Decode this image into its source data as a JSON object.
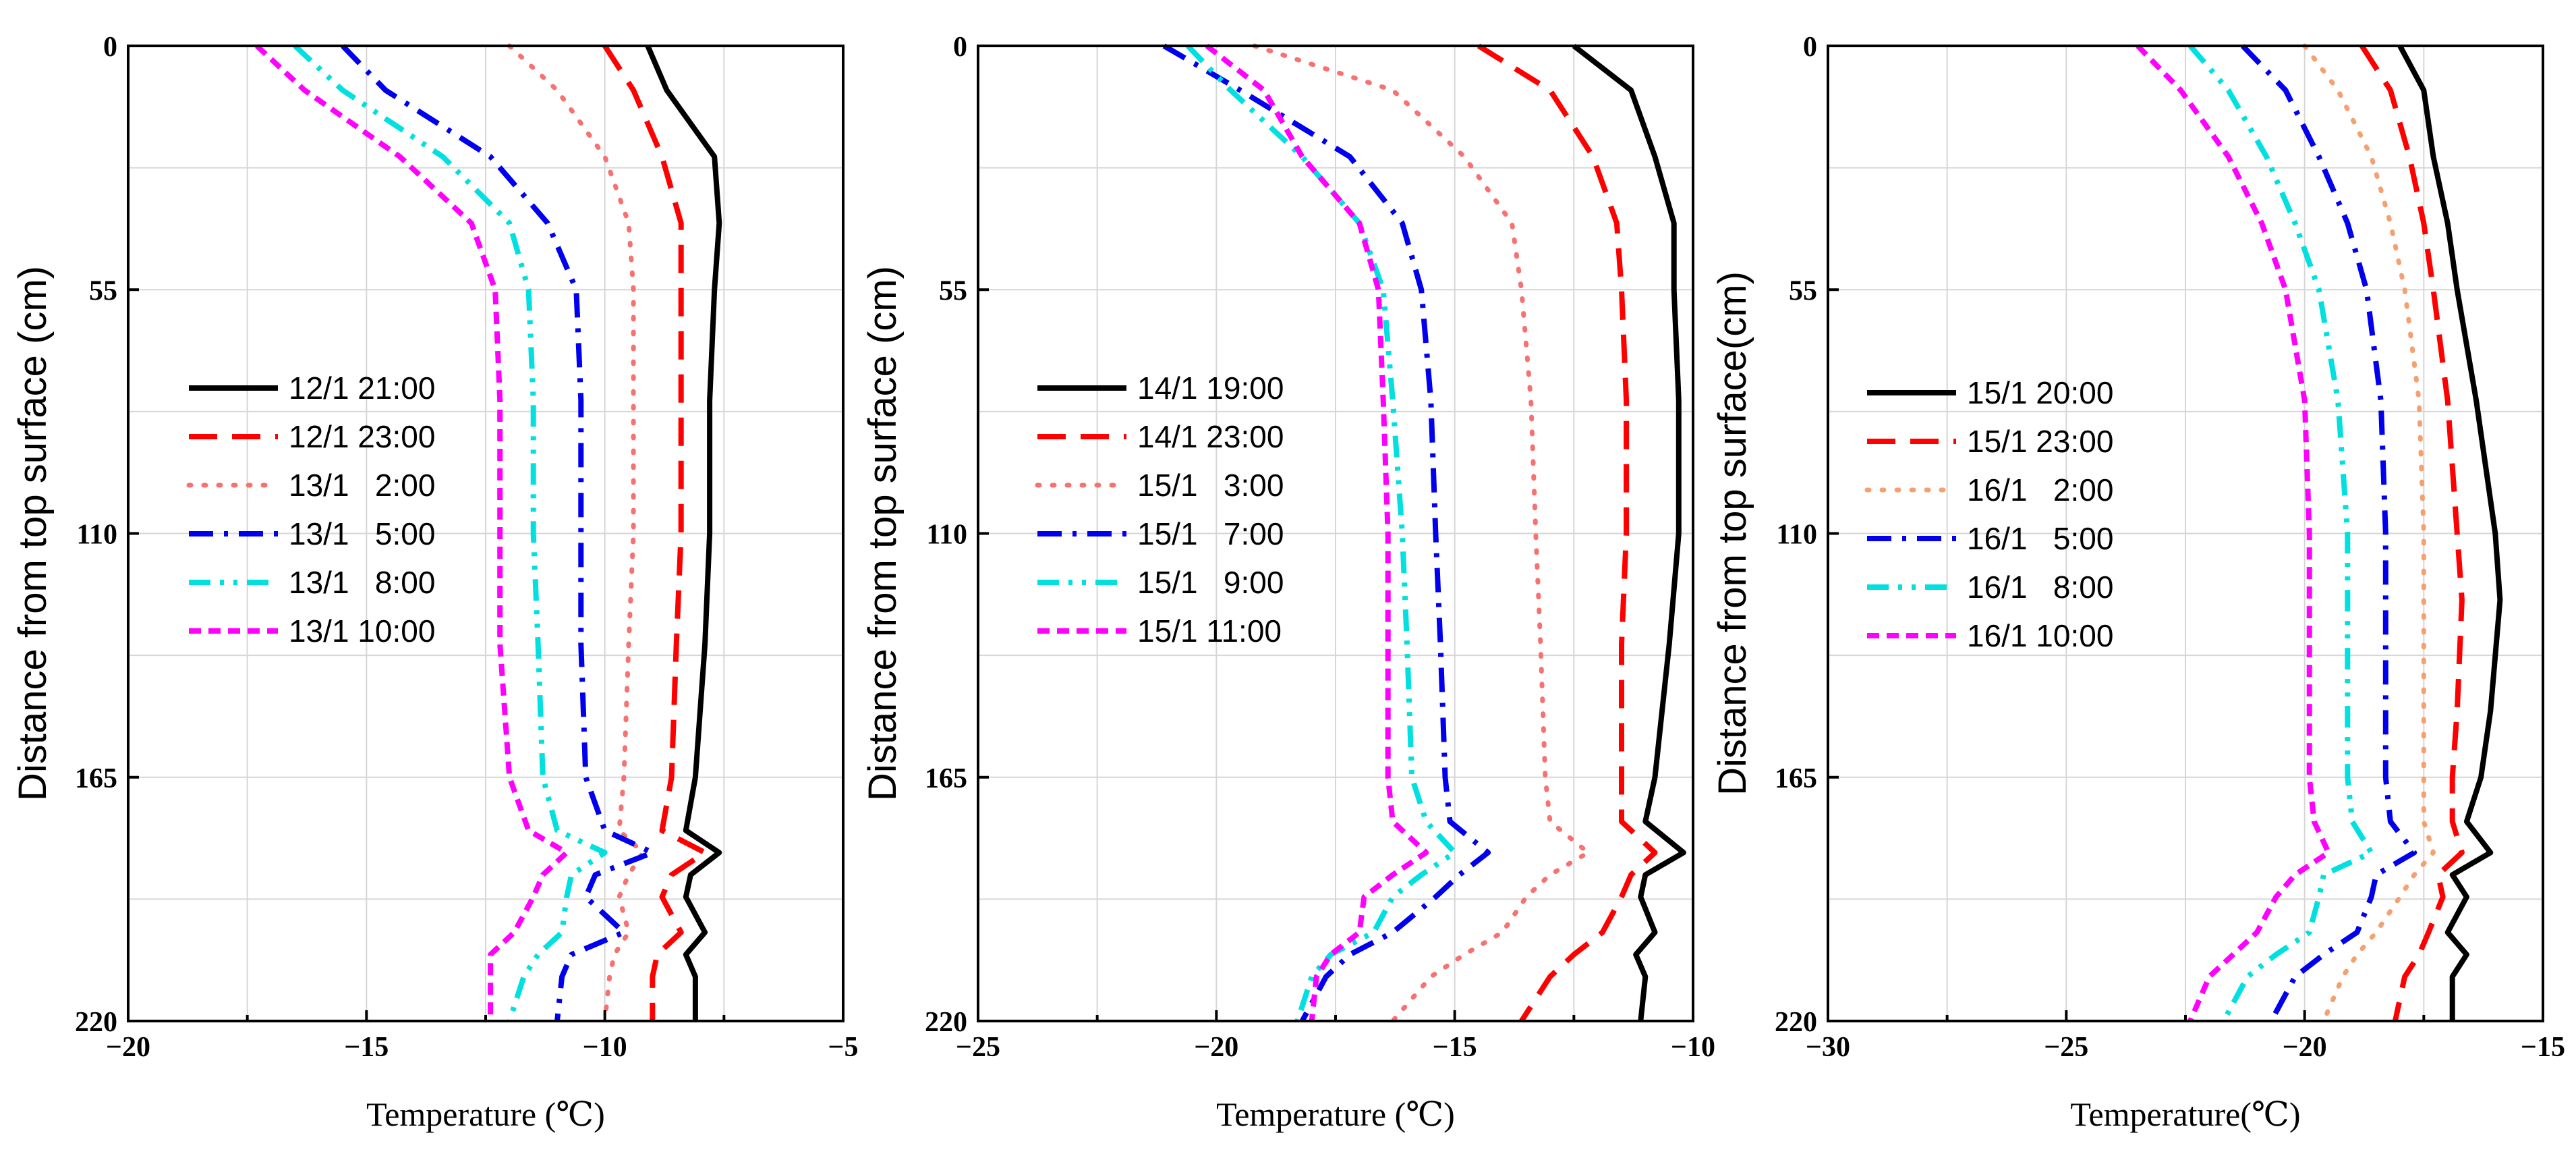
{
  "chart_data": [
    {
      "type": "line",
      "xlabel": "Temperature (℃)",
      "ylabel": "Distance from top surface (cm)",
      "xlim": [
        -20,
        -5
      ],
      "xticks": [
        -20,
        -15,
        -10,
        -5
      ],
      "x_minor_step": 2.5,
      "ylim": [
        0,
        220
      ],
      "yticks": [
        0,
        55,
        110,
        165,
        220
      ],
      "y_minor_step": 27.5,
      "y": [
        0,
        10,
        25,
        40,
        55,
        80,
        110,
        135,
        165,
        177,
        182,
        187,
        192,
        200,
        205,
        210,
        220
      ],
      "series": [
        {
          "name": "12/1 21:00",
          "color": "#000000",
          "dash": "solid",
          "x": [
            -9.1,
            -8.7,
            -7.7,
            -7.6,
            -7.7,
            -7.8,
            -7.8,
            -7.9,
            -8.1,
            -8.3,
            -7.6,
            -8.2,
            -8.3,
            -7.9,
            -8.3,
            -8.1,
            -8.1
          ]
        },
        {
          "name": "12/1 23:00",
          "color": "#ff0000",
          "dash": "dash",
          "x": [
            -10.0,
            -9.4,
            -8.8,
            -8.4,
            -8.4,
            -8.4,
            -8.4,
            -8.5,
            -8.6,
            -8.8,
            -7.9,
            -8.6,
            -8.8,
            -8.4,
            -8.9,
            -9.0,
            -9.0
          ]
        },
        {
          "name": "13/1   2:00",
          "color": "#f87171",
          "dash": "dot",
          "x": [
            -12.0,
            -11.0,
            -10.0,
            -9.5,
            -9.4,
            -9.4,
            -9.4,
            -9.5,
            -9.6,
            -9.7,
            -9.2,
            -9.5,
            -9.7,
            -9.5,
            -9.8,
            -9.9,
            -10.0
          ]
        },
        {
          "name": "13/1   5:00",
          "color": "#0000ee",
          "dash": "dashdot",
          "x": [
            -15.5,
            -14.6,
            -12.4,
            -11.2,
            -10.6,
            -10.5,
            -10.5,
            -10.5,
            -10.4,
            -10.0,
            -9.0,
            -10.2,
            -10.4,
            -9.6,
            -10.7,
            -10.9,
            -11.0
          ]
        },
        {
          "name": "13/1   8:00",
          "color": "#00e0e0",
          "dash": "dashdotdot",
          "x": [
            -16.5,
            -15.5,
            -13.4,
            -12.0,
            -11.6,
            -11.5,
            -11.5,
            -11.4,
            -11.3,
            -11.0,
            -10.0,
            -10.7,
            -10.8,
            -10.9,
            -11.4,
            -11.7,
            -12.0
          ]
        },
        {
          "name": "13/1 10:00",
          "color": "#ff00ff",
          "dash": "shortdash",
          "x": [
            -17.3,
            -16.3,
            -14.3,
            -12.8,
            -12.3,
            -12.2,
            -12.2,
            -12.2,
            -12.0,
            -11.6,
            -10.8,
            -11.3,
            -11.5,
            -11.9,
            -12.4,
            -12.4,
            -12.4
          ]
        }
      ]
    },
    {
      "type": "line",
      "xlabel": "Temperature (℃)",
      "ylabel": "Distance from top surface (cm)",
      "xlim": [
        -25,
        -10
      ],
      "xticks": [
        -25,
        -20,
        -15,
        -10
      ],
      "x_minor_step": 2.5,
      "ylim": [
        0,
        220
      ],
      "yticks": [
        0,
        55,
        110,
        165,
        220
      ],
      "y_minor_step": 27.5,
      "y": [
        0,
        10,
        25,
        40,
        55,
        80,
        110,
        135,
        165,
        175,
        182,
        187,
        192,
        200,
        205,
        210,
        220
      ],
      "series": [
        {
          "name": "14/1 19:00",
          "color": "#000000",
          "dash": "solid",
          "x": [
            -12.5,
            -11.3,
            -10.8,
            -10.4,
            -10.4,
            -10.3,
            -10.3,
            -10.5,
            -10.8,
            -11.0,
            -10.2,
            -11.0,
            -11.1,
            -10.8,
            -11.2,
            -11.0,
            -11.1
          ]
        },
        {
          "name": "14/1 23:00",
          "color": "#ff0000",
          "dash": "dash",
          "x": [
            -14.5,
            -13.0,
            -12.1,
            -11.6,
            -11.5,
            -11.4,
            -11.4,
            -11.5,
            -11.5,
            -11.5,
            -10.8,
            -11.3,
            -11.5,
            -11.9,
            -12.5,
            -13.0,
            -13.6
          ]
        },
        {
          "name": "15/1   3:00",
          "color": "#f87171",
          "dash": "dot",
          "x": [
            -19.2,
            -16.3,
            -14.8,
            -13.8,
            -13.6,
            -13.4,
            -13.3,
            -13.2,
            -13.1,
            -13.0,
            -12.2,
            -13.0,
            -13.5,
            -14.0,
            -14.8,
            -15.5,
            -16.3
          ]
        },
        {
          "name": "15/1   7:00",
          "color": "#0000ee",
          "dash": "dashdot",
          "x": [
            -21.1,
            -19.5,
            -17.2,
            -16.1,
            -15.7,
            -15.5,
            -15.4,
            -15.3,
            -15.2,
            -15.1,
            -14.3,
            -14.9,
            -15.4,
            -16.3,
            -17.2,
            -17.7,
            -18.2
          ]
        },
        {
          "name": "15/1   9:00",
          "color": "#00e0e0",
          "dash": "dashdotdot",
          "x": [
            -20.6,
            -19.7,
            -18.2,
            -17.0,
            -16.5,
            -16.3,
            -16.1,
            -16.0,
            -15.9,
            -15.6,
            -15.0,
            -15.7,
            -16.3,
            -16.7,
            -17.6,
            -18.0,
            -18.3
          ]
        },
        {
          "name": "15/1 11:00",
          "color": "#ff00ff",
          "dash": "shortdash",
          "x": [
            -20.2,
            -19.0,
            -18.2,
            -17.0,
            -16.6,
            -16.5,
            -16.4,
            -16.4,
            -16.4,
            -16.3,
            -15.6,
            -16.3,
            -16.9,
            -17.0,
            -17.6,
            -17.9,
            -18.0
          ]
        }
      ]
    },
    {
      "type": "line",
      "xlabel": "Temperature(℃)",
      "ylabel": "Distance from top surface(cm)",
      "xlim": [
        -30,
        -15
      ],
      "xticks": [
        -30,
        -25,
        -20,
        -15
      ],
      "x_minor_step": 2.5,
      "ylim": [
        0,
        220
      ],
      "yticks": [
        0,
        55,
        110,
        165,
        220
      ],
      "y_minor_step": 27.5,
      "y": [
        0,
        10,
        25,
        40,
        55,
        80,
        110,
        125,
        150,
        165,
        175,
        182,
        187,
        192,
        200,
        205,
        210,
        220
      ],
      "series": [
        {
          "name": "15/1 20:00",
          "color": "#000000",
          "dash": "solid",
          "x": [
            -18.0,
            -17.5,
            -17.3,
            -17.0,
            -16.8,
            -16.4,
            -16.0,
            -15.9,
            -16.1,
            -16.3,
            -16.6,
            -16.1,
            -16.9,
            -16.6,
            -17.0,
            -16.6,
            -16.9,
            -16.9
          ]
        },
        {
          "name": "15/1 23:00",
          "color": "#ff0000",
          "dash": "dash",
          "x": [
            -18.8,
            -18.2,
            -17.8,
            -17.5,
            -17.3,
            -17.0,
            -16.8,
            -16.7,
            -16.8,
            -16.9,
            -16.9,
            -16.7,
            -17.2,
            -17.1,
            -17.4,
            -17.6,
            -17.9,
            -18.1
          ]
        },
        {
          "name": "16/1   2:00",
          "color": "#f5a070",
          "dash": "dot",
          "x": [
            -20.0,
            -19.3,
            -18.6,
            -18.2,
            -17.9,
            -17.6,
            -17.5,
            -17.5,
            -17.5,
            -17.5,
            -17.5,
            -17.3,
            -17.7,
            -18.0,
            -18.5,
            -18.9,
            -19.2,
            -19.6
          ]
        },
        {
          "name": "16/1   5:00",
          "color": "#0000ee",
          "dash": "dashdot",
          "x": [
            -21.3,
            -20.4,
            -19.7,
            -19.1,
            -18.7,
            -18.4,
            -18.3,
            -18.3,
            -18.3,
            -18.3,
            -18.2,
            -17.7,
            -18.5,
            -18.6,
            -18.9,
            -19.6,
            -20.2,
            -20.7
          ]
        },
        {
          "name": "16/1   8:00",
          "color": "#00e0e0",
          "dash": "dashdotdot",
          "x": [
            -22.4,
            -21.6,
            -20.8,
            -20.2,
            -19.7,
            -19.3,
            -19.1,
            -19.1,
            -19.1,
            -19.1,
            -19.0,
            -18.6,
            -19.6,
            -19.7,
            -19.9,
            -20.6,
            -21.2,
            -21.7
          ]
        },
        {
          "name": "16/1 10:00",
          "color": "#ff00ff",
          "dash": "shortdash",
          "x": [
            -23.5,
            -22.6,
            -21.6,
            -20.9,
            -20.4,
            -20.0,
            -19.9,
            -19.9,
            -19.9,
            -19.9,
            -19.8,
            -19.5,
            -20.2,
            -20.6,
            -21.0,
            -21.5,
            -22.0,
            -22.4
          ]
        }
      ]
    }
  ]
}
